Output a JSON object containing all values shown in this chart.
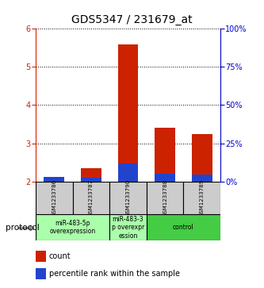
{
  "title": "GDS5347 / 231679_at",
  "samples": [
    "GSM1233786",
    "GSM1233787",
    "GSM1233790",
    "GSM1233788",
    "GSM1233789"
  ],
  "red_values": [
    2.1,
    2.35,
    5.6,
    3.4,
    3.25
  ],
  "blue_values": [
    2.12,
    2.1,
    2.48,
    2.2,
    2.18
  ],
  "red_color": "#cc2200",
  "blue_color": "#2244cc",
  "ylim_left": [
    2,
    6
  ],
  "ylim_right": [
    0,
    100
  ],
  "yticks_left": [
    2,
    3,
    4,
    5,
    6
  ],
  "yticks_right": [
    0,
    25,
    50,
    75,
    100
  ],
  "ytick_labels_right": [
    "0%",
    "25%",
    "50%",
    "75%",
    "100%"
  ],
  "background_color": "#ffffff",
  "grid_color": "#000000",
  "group_defs": [
    {
      "start": 0,
      "end": 1,
      "label": "miR-483-5p\noverexpression",
      "color": "#aaffaa"
    },
    {
      "start": 2,
      "end": 2,
      "label": "miR-483-3\np overexpr\nession",
      "color": "#aaffaa"
    },
    {
      "start": 3,
      "end": 4,
      "label": "control",
      "color": "#44cc44"
    }
  ],
  "legend_count": "count",
  "legend_percentile": "percentile rank within the sample",
  "protocol_label": "protocol"
}
